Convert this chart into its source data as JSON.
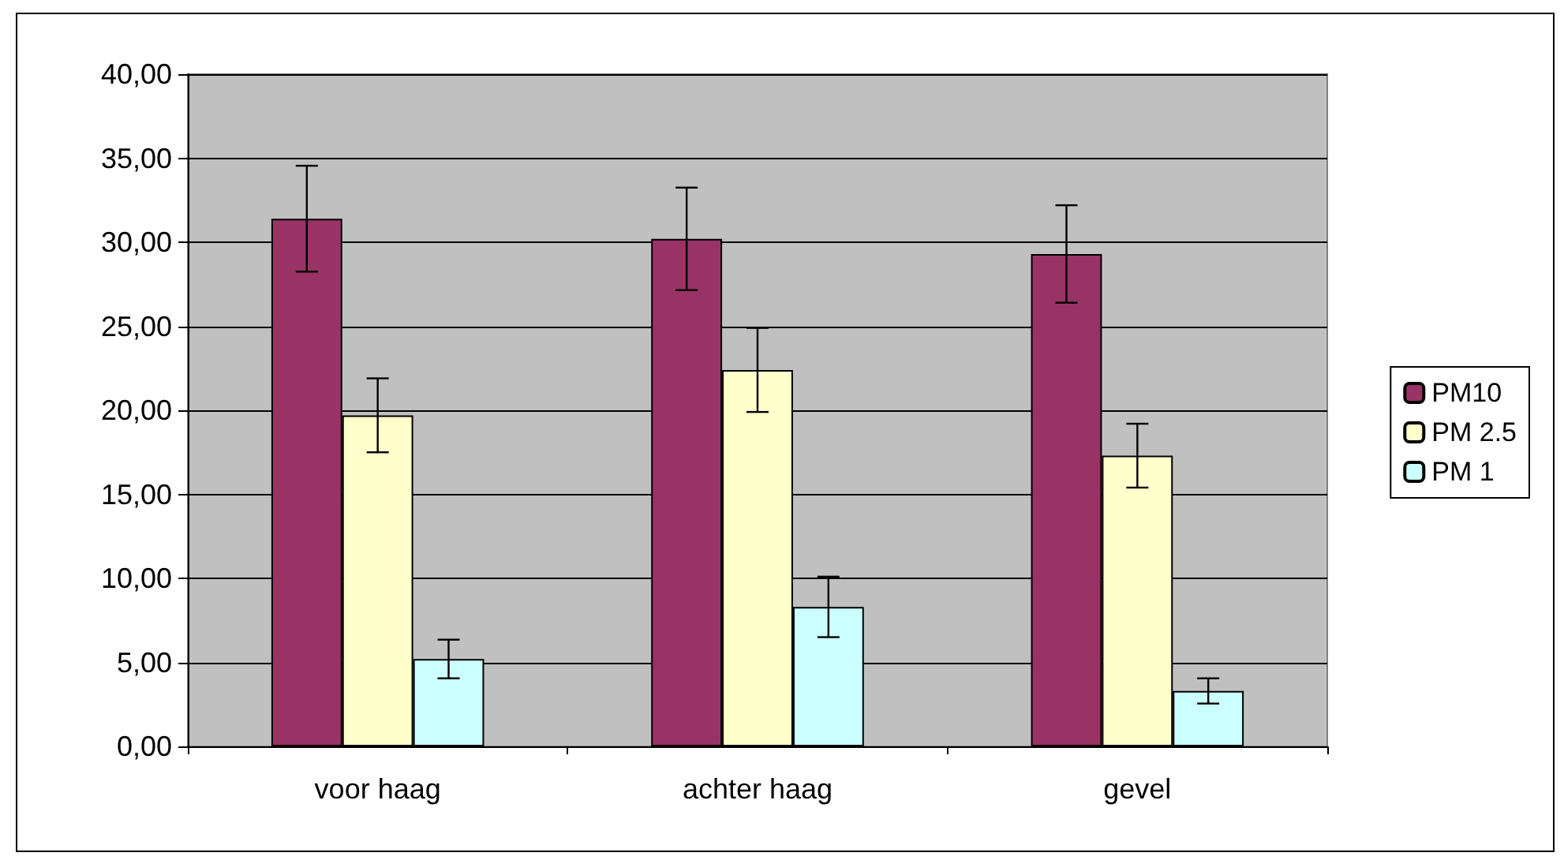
{
  "chart_data": {
    "type": "bar",
    "categories": [
      "voor haag",
      "achter haag",
      "gevel"
    ],
    "series": [
      {
        "name": "PM10",
        "color": "#993366",
        "values": [
          31.4,
          30.2,
          29.3
        ],
        "errors": [
          3.15,
          3.05,
          2.9
        ]
      },
      {
        "name": "PM 2.5",
        "color": "#ffffcc",
        "values": [
          19.7,
          22.4,
          17.3
        ],
        "errors": [
          2.2,
          2.5,
          1.9
        ]
      },
      {
        "name": "PM 1",
        "color": "#ccffff",
        "values": [
          5.2,
          8.3,
          3.3
        ],
        "errors": [
          1.15,
          1.8,
          0.75
        ]
      }
    ],
    "ylim": [
      0,
      40
    ],
    "yticks": [
      {
        "value": 0,
        "label": "0,00"
      },
      {
        "value": 5,
        "label": "5,00"
      },
      {
        "value": 10,
        "label": "10,00"
      },
      {
        "value": 15,
        "label": "15,00"
      },
      {
        "value": 20,
        "label": "20,00"
      },
      {
        "value": 25,
        "label": "25,00"
      },
      {
        "value": 30,
        "label": "30,00"
      },
      {
        "value": 35,
        "label": "35,00"
      },
      {
        "value": 40,
        "label": "40,00"
      }
    ],
    "grid": "y",
    "legend": "right"
  }
}
